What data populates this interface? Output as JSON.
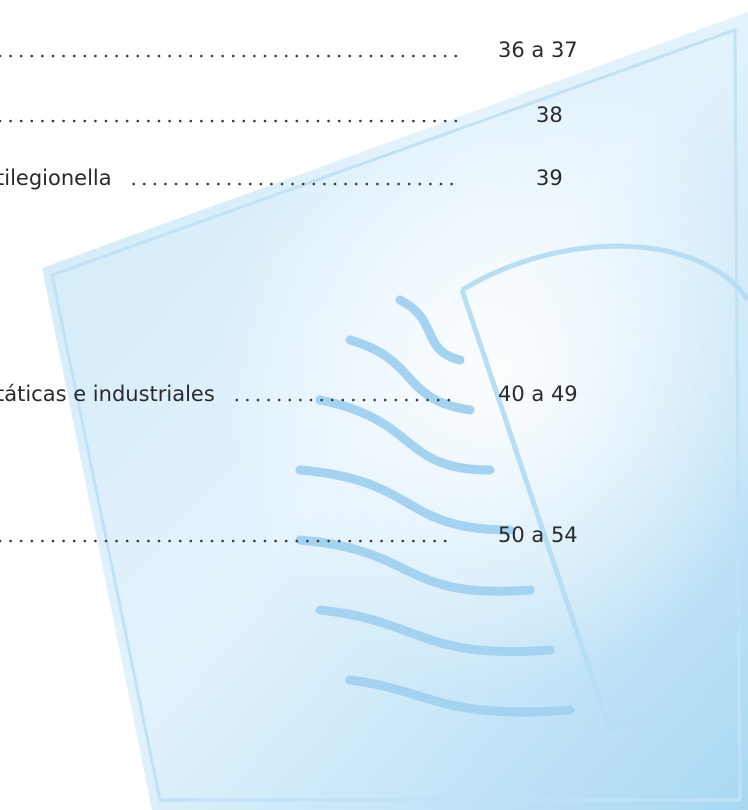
{
  "toc": {
    "entries": [
      {
        "page": "36 a 37"
      },
      {
        "page": "38"
      },
      {
        "label": "tilegionella",
        "page": "39"
      },
      {
        "label": "táticas e industriales",
        "page": "40 a 49"
      },
      {
        "page": "50 a 54"
      }
    ]
  }
}
